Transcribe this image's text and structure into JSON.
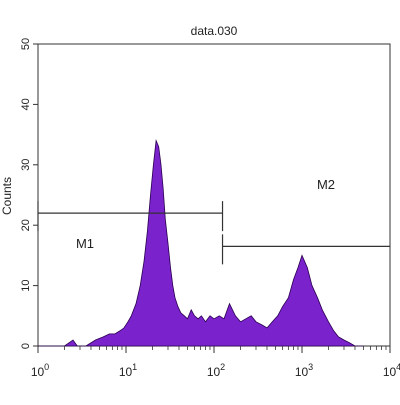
{
  "chart_data": {
    "type": "histogram",
    "title": "data.030",
    "xlabel": "",
    "ylabel": "Counts",
    "x_scale": "log",
    "xlim": [
      1,
      10000
    ],
    "ylim": [
      0,
      50
    ],
    "y_ticks": [
      "0",
      "10",
      "20",
      "30",
      "40",
      "50"
    ],
    "x_ticks": [
      {
        "base": "10",
        "exp": "0"
      },
      {
        "base": "10",
        "exp": "1"
      },
      {
        "base": "10",
        "exp": "2"
      },
      {
        "base": "10",
        "exp": "3"
      },
      {
        "base": "10",
        "exp": "4"
      }
    ],
    "fill_color": "#7a22cc",
    "series": [
      {
        "x": [
          1.0,
          2.0,
          2.5,
          2.8,
          3.5,
          4.5,
          5.5,
          6.5,
          7.5,
          8.5,
          9.5,
          10.5,
          11.5,
          13,
          14.5,
          16,
          17.5,
          19,
          20.5,
          22,
          23.5,
          25,
          26.5,
          28,
          30,
          32,
          34,
          36,
          39,
          42,
          46,
          50,
          55,
          60,
          66,
          72,
          80,
          90,
          100,
          115,
          130,
          150,
          175,
          200,
          230,
          265,
          300,
          350,
          400,
          460,
          530,
          600,
          700,
          800,
          900,
          1000,
          1150,
          1300,
          1500,
          1700,
          2000,
          2300,
          2600,
          3000,
          3500,
          4000,
          5000
        ],
        "y": [
          0,
          0,
          1,
          0,
          0,
          1,
          1.5,
          2,
          2,
          2.5,
          3,
          4,
          5,
          7,
          10,
          14,
          19,
          25,
          30,
          34,
          33,
          30,
          26,
          21,
          17,
          13,
          10,
          8,
          6.5,
          5.5,
          5,
          4.5,
          6,
          5,
          4.5,
          5,
          4,
          5,
          4.5,
          5,
          4.5,
          7,
          5,
          4,
          4.5,
          5,
          4,
          3.5,
          3,
          4,
          5,
          6.5,
          8,
          11,
          13,
          15,
          13,
          10,
          8,
          6,
          4,
          2.5,
          1.5,
          1,
          0.5,
          0,
          0
        ]
      }
    ],
    "markers": [
      {
        "label": "M1",
        "range": [
          1,
          125
        ],
        "y": 22
      },
      {
        "label": "M2",
        "range": [
          125,
          10000
        ],
        "y": 16.5
      }
    ]
  }
}
